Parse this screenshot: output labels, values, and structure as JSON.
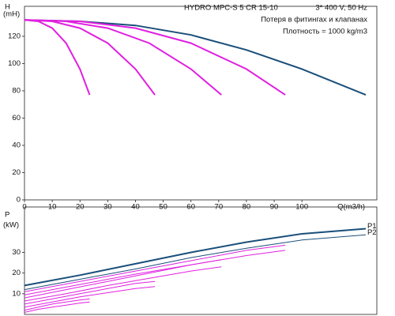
{
  "chart_data": [
    {
      "type": "line",
      "title": "HYDRO MPC-S 5 CR 15-10",
      "subtitle": "3* 400 V, 50 Hz",
      "annotations": [
        "Потеря в фитингах и клапанах",
        "Плотность = 1000 kg/m3"
      ],
      "ylabel": "H",
      "ylabel_unit": "(mH)",
      "xlabel": "Q(m3/h)",
      "xlim": [
        0,
        127
      ],
      "xticks": [
        0,
        10,
        20,
        30,
        40,
        50,
        60,
        70,
        80,
        90,
        100
      ],
      "ylim": [
        0,
        142
      ],
      "yticks": [
        0,
        20,
        40,
        60,
        80,
        100,
        120
      ],
      "series": [
        {
          "color": "#1a4f7a",
          "width": 2,
          "x": [
            0,
            20,
            40,
            60,
            80,
            100,
            123
          ],
          "values": [
            132,
            131,
            128,
            121,
            110,
            96,
            77
          ]
        },
        {
          "color": "#e020e0",
          "width": 2,
          "x": [
            0,
            5,
            10,
            15,
            20,
            23.5
          ],
          "values": [
            132,
            131,
            126,
            115,
            96,
            77
          ]
        },
        {
          "color": "#e020e0",
          "width": 2,
          "x": [
            0,
            10,
            20,
            30,
            40,
            47
          ],
          "values": [
            132,
            131,
            126,
            115,
            96,
            77
          ]
        },
        {
          "color": "#e020e0",
          "width": 2,
          "x": [
            0,
            15,
            30,
            45,
            60,
            71
          ],
          "values": [
            132,
            131,
            126,
            115,
            96,
            77
          ]
        },
        {
          "color": "#e020e0",
          "width": 2,
          "x": [
            0,
            20,
            40,
            60,
            80,
            94
          ],
          "values": [
            132,
            131,
            126,
            115,
            96,
            77
          ]
        }
      ]
    },
    {
      "type": "line",
      "ylabel": "P",
      "ylabel_unit": "(kW)",
      "xlim": [
        0,
        127
      ],
      "ylim": [
        0,
        52
      ],
      "yticks": [
        10,
        20,
        30
      ],
      "series": [
        {
          "name": "P1",
          "color": "#1a4f7a",
          "width": 2,
          "x": [
            0,
            20,
            40,
            60,
            80,
            100,
            123
          ],
          "values": [
            14,
            19,
            24.5,
            30,
            35,
            39,
            41.5
          ]
        },
        {
          "name": "P2",
          "color": "#1a4f7a",
          "width": 1,
          "x": [
            0,
            20,
            40,
            60,
            80,
            100,
            123
          ],
          "values": [
            12,
            17,
            22,
            27.5,
            32,
            36,
            38.5
          ]
        },
        {
          "color": "#e020e0",
          "width": 1,
          "x": [
            0,
            20,
            40,
            60,
            80,
            94
          ],
          "values": [
            11,
            16,
            21,
            26,
            31,
            33.5
          ]
        },
        {
          "color": "#e020e0",
          "width": 1,
          "x": [
            0,
            20,
            40,
            60,
            80,
            94
          ],
          "values": [
            9.5,
            14.5,
            19.5,
            24,
            28.5,
            31
          ]
        },
        {
          "color": "#e020e0",
          "width": 1,
          "x": [
            0,
            15,
            30,
            45,
            60,
            71
          ],
          "values": [
            8,
            12,
            16,
            20,
            24,
            26.5
          ]
        },
        {
          "color": "#e020e0",
          "width": 1,
          "x": [
            0,
            15,
            30,
            45,
            60,
            71
          ],
          "values": [
            6.5,
            10,
            14,
            17.5,
            21,
            23
          ]
        },
        {
          "color": "#e020e0",
          "width": 1,
          "x": [
            0,
            10,
            20,
            30,
            40,
            47
          ],
          "values": [
            5,
            7.5,
            10,
            12.5,
            15,
            16
          ]
        },
        {
          "color": "#e020e0",
          "width": 1,
          "x": [
            0,
            10,
            20,
            30,
            40,
            47
          ],
          "values": [
            3.5,
            6,
            8.5,
            10.5,
            12.5,
            13.5
          ]
        },
        {
          "color": "#e020e0",
          "width": 1,
          "x": [
            0,
            5,
            10,
            15,
            20,
            23.5
          ],
          "values": [
            2,
            3.5,
            5,
            6,
            7,
            7.5
          ]
        },
        {
          "color": "#e020e0",
          "width": 1,
          "x": [
            0,
            5,
            10,
            15,
            20,
            23.5
          ],
          "values": [
            1,
            2.5,
            3.5,
            4.5,
            5.5,
            6
          ]
        }
      ]
    }
  ]
}
